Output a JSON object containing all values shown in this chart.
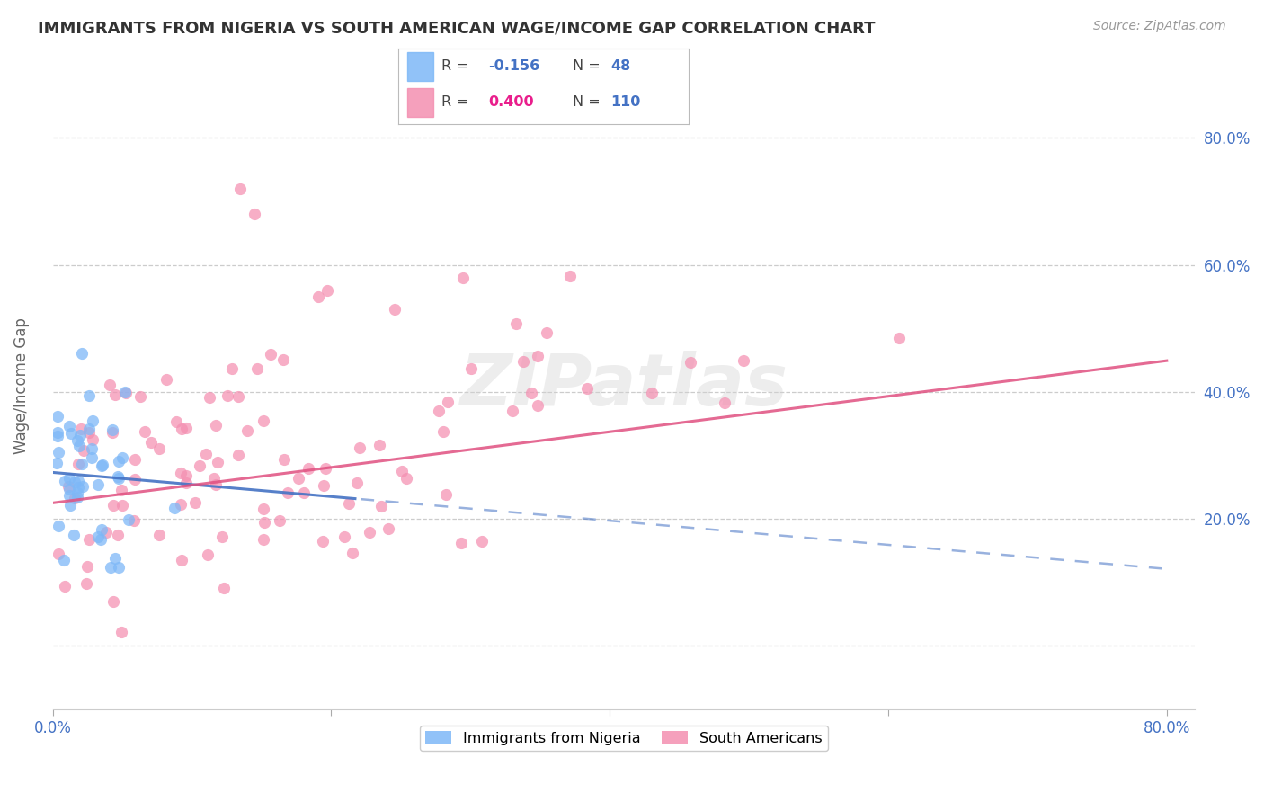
{
  "title": "IMMIGRANTS FROM NIGERIA VS SOUTH AMERICAN WAGE/INCOME GAP CORRELATION CHART",
  "source": "Source: ZipAtlas.com",
  "ylabel": "Wage/Income Gap",
  "nigeria": {
    "R": -0.156,
    "N": 48,
    "color": "#7eb8f7",
    "line_color": "#4472C4",
    "label": "Immigrants from Nigeria"
  },
  "south_american": {
    "R": 0.4,
    "N": 110,
    "color": "#f48fb1",
    "line_color": "#e05080",
    "label": "South Americans"
  },
  "x_lim": [
    0.0,
    0.82
  ],
  "y_lim": [
    -0.1,
    0.92
  ],
  "watermark": "ZIPatlas",
  "background_color": "#ffffff",
  "grid_color": "#cccccc",
  "title_color": "#333333",
  "axis_color": "#4472C4",
  "right_yticks_vals": [
    0.8,
    0.6,
    0.4,
    0.2
  ],
  "right_yticks_labels": [
    "80.0%",
    "60.0%",
    "40.0%",
    "20.0%"
  ]
}
